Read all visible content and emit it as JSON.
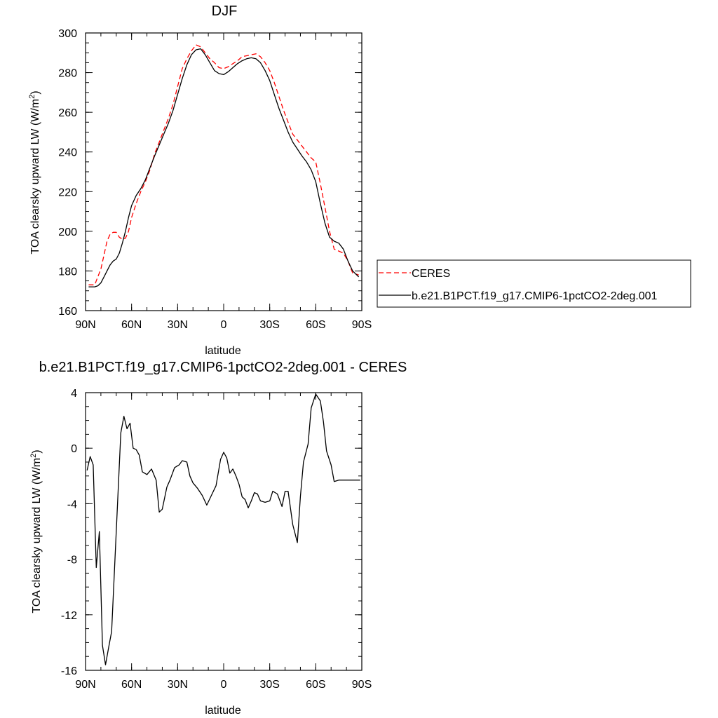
{
  "chart_data": [
    {
      "type": "line",
      "title": "DJF",
      "xlabel": "latitude",
      "ylabel": "TOA clearsky upward LW (W/m",
      "ylabel_sup": "2",
      "ylabel_close": ")",
      "xlim": [
        90,
        -90
      ],
      "ylim": [
        160,
        300
      ],
      "xticks": [
        90,
        60,
        30,
        0,
        -30,
        -60,
        -90
      ],
      "xtick_labels": [
        "90N",
        "60N",
        "30N",
        "0",
        "30S",
        "60S",
        "90S"
      ],
      "yticks": [
        160,
        180,
        200,
        220,
        240,
        260,
        280,
        300
      ],
      "ytick_labels": [
        "160",
        "180",
        "200",
        "220",
        "240",
        "260",
        "280",
        "300"
      ],
      "legend_position": "right",
      "series": [
        {
          "name": "CERES",
          "color": "#ff0000",
          "style": "dashed",
          "x": [
            88,
            84,
            82,
            80,
            78,
            76,
            74,
            72,
            70,
            68,
            66,
            64,
            62,
            60,
            57,
            54,
            51,
            48,
            45,
            42,
            39,
            36,
            33,
            30,
            27,
            24,
            21,
            18,
            15,
            12,
            9,
            6,
            3,
            0,
            -3,
            -6,
            -9,
            -12,
            -15,
            -18,
            -21,
            -24,
            -27,
            -30,
            -33,
            -36,
            -39,
            -42,
            -45,
            -48,
            -51,
            -54,
            -57,
            -60,
            -63,
            -66,
            -69,
            -72,
            -75,
            -78,
            -81,
            -84,
            -88
          ],
          "y": [
            173,
            173,
            177,
            181,
            188,
            195,
            198.5,
            199.5,
            199.5,
            197,
            196,
            196.5,
            200,
            207,
            214,
            220,
            225,
            231,
            239,
            245,
            251,
            257,
            264,
            273,
            282,
            287,
            291,
            294,
            293,
            290,
            287,
            285,
            282.5,
            282,
            283,
            284.5,
            286,
            288,
            288.5,
            289,
            289.5,
            288,
            285,
            281,
            275,
            268,
            261,
            255,
            249,
            246,
            243,
            240,
            237,
            235,
            224,
            212,
            200,
            191,
            190,
            189,
            185,
            179,
            178
          ]
        },
        {
          "name": "b.e21.B1PCT.f19_g17.CMIP6-1pctCO2-2deg.001",
          "color": "#000000",
          "style": "solid",
          "x": [
            88,
            84,
            82,
            80,
            78,
            76,
            74,
            72,
            70,
            68,
            66,
            64,
            62,
            60,
            57,
            54,
            51,
            48,
            45,
            42,
            39,
            36,
            33,
            30,
            27,
            24,
            21,
            18,
            15,
            12,
            9,
            6,
            3,
            0,
            -3,
            -6,
            -9,
            -12,
            -15,
            -18,
            -21,
            -24,
            -27,
            -30,
            -33,
            -36,
            -39,
            -42,
            -45,
            -48,
            -51,
            -54,
            -57,
            -60,
            -63,
            -66,
            -69,
            -72,
            -75,
            -78,
            -81,
            -84,
            -88
          ],
          "y": [
            172,
            172,
            172.5,
            174,
            177,
            180,
            183,
            185,
            186,
            189,
            194,
            200,
            207,
            213,
            218,
            221.5,
            226,
            232,
            238,
            243.5,
            249,
            254.5,
            261,
            269,
            277,
            284,
            289,
            291.5,
            292,
            289,
            285,
            281,
            279.5,
            279,
            280.5,
            282.5,
            284.5,
            286,
            287,
            287.5,
            287,
            285,
            281,
            276,
            269,
            262,
            256,
            250,
            245,
            241.5,
            238,
            235,
            231,
            225,
            214,
            204,
            197,
            195,
            194,
            191,
            185,
            180,
            177
          ]
        }
      ]
    },
    {
      "type": "line",
      "title": "b.e21.B1PCT.f19_g17.CMIP6-1pctCO2-2deg.001 - CERES",
      "xlabel": "latitude",
      "ylabel": "TOA clearsky upward LW (W/m",
      "ylabel_sup": "2",
      "ylabel_close": ")",
      "xlim": [
        90,
        -90
      ],
      "ylim": [
        -16,
        4
      ],
      "xticks": [
        90,
        60,
        30,
        0,
        -30,
        -60,
        -90
      ],
      "xtick_labels": [
        "90N",
        "60N",
        "30N",
        "0",
        "30S",
        "60S",
        "90S"
      ],
      "yticks": [
        -16,
        -12,
        -8,
        -4,
        0,
        4
      ],
      "ytick_labels": [
        "-16",
        "-12",
        "-8",
        "-4",
        "0",
        "4"
      ],
      "series": [
        {
          "color": "#000000",
          "style": "solid",
          "x": [
            89,
            87,
            85,
            83,
            81,
            79,
            77,
            75,
            73,
            70,
            67,
            65,
            63,
            61,
            59,
            57,
            55,
            53,
            50,
            47,
            44,
            42,
            40,
            37,
            35,
            32,
            29,
            27,
            24,
            22,
            20,
            17,
            14,
            11,
            8,
            5,
            2,
            0,
            -2,
            -4,
            -6,
            -8,
            -10,
            -12,
            -14,
            -16,
            -18,
            -20,
            -22,
            -24,
            -27,
            -30,
            -32,
            -35,
            -38,
            -40,
            -42,
            -45,
            -48,
            -50,
            -52,
            -55,
            -57,
            -60,
            -63,
            -65,
            -67,
            -70,
            -72,
            -75,
            -77,
            -80,
            -82,
            -85,
            -87,
            -89
          ],
          "y": [
            -1.6,
            -0.6,
            -1.2,
            -8.6,
            -6,
            -14.2,
            -15.6,
            -14.4,
            -13.2,
            -6,
            1.1,
            2.3,
            1.4,
            1.8,
            0,
            -0.1,
            -0.5,
            -1.7,
            -1.9,
            -1.5,
            -2.3,
            -4.6,
            -4.4,
            -2.8,
            -2.3,
            -1.4,
            -1.2,
            -0.9,
            -1,
            -2,
            -2.5,
            -2.9,
            -3.4,
            -4.1,
            -3.4,
            -2.7,
            -0.8,
            -0.3,
            -0.7,
            -1.8,
            -1.5,
            -2,
            -2.6,
            -3.5,
            -3.7,
            -4.3,
            -3.8,
            -3.2,
            -3.3,
            -3.8,
            -3.9,
            -3.8,
            -3.1,
            -3.3,
            -4.2,
            -3.1,
            -3.1,
            -5.5,
            -6.8,
            -3.5,
            -1,
            0.3,
            2.9,
            3.9,
            3.4,
            1.9,
            -0.2,
            -1.2,
            -2.4,
            -2.3,
            -2.3,
            -2.3,
            -2.3,
            -2.3,
            -2.3,
            -2.3
          ]
        }
      ]
    }
  ]
}
